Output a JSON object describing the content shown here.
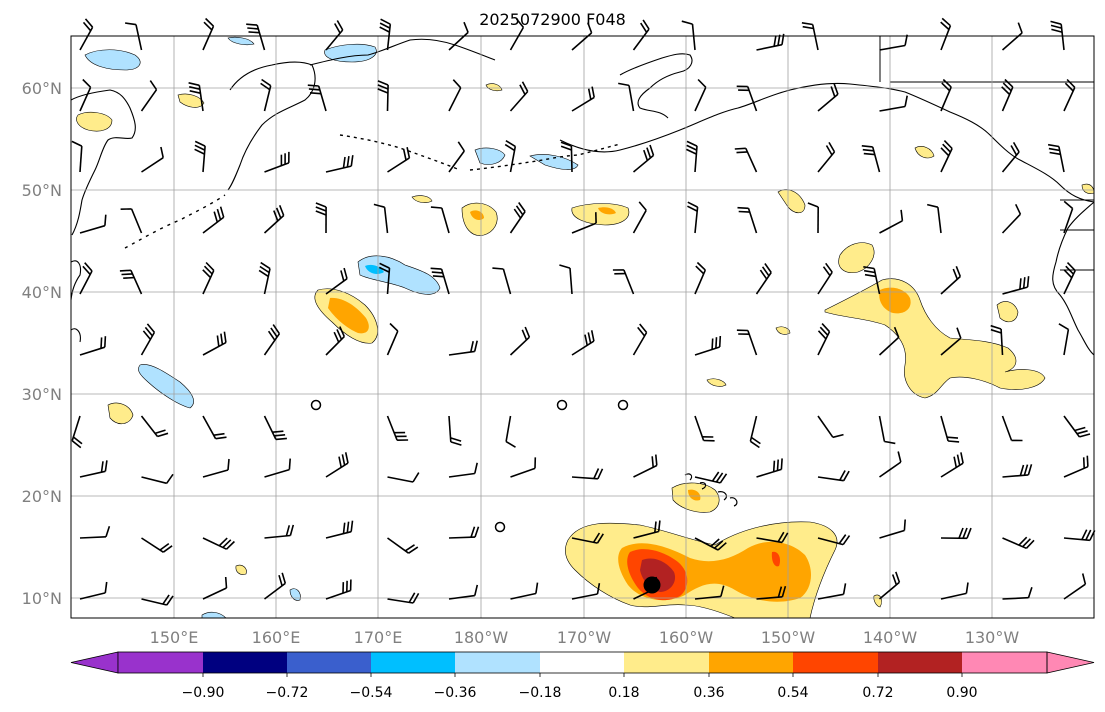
{
  "title": "2025072900 F048",
  "lat_labels": [
    "60°N",
    "50°N",
    "40°N",
    "30°N",
    "20°N",
    "10°N"
  ],
  "lon_labels": [
    "150°E",
    "160°E",
    "170°E",
    "180°W",
    "170°W",
    "160°W",
    "150°W",
    "140°W",
    "130°W"
  ],
  "colorbar": {
    "tick_labels": [
      "−0.90",
      "−0.72",
      "−0.54",
      "−0.36",
      "−0.18",
      "0.18",
      "0.36",
      "0.54",
      "0.72",
      "0.90"
    ],
    "colors": [
      "#9932cc",
      "#000080",
      "#3a5fcd",
      "#00bfff",
      "#b0e2ff",
      "#ffffff",
      "#ffec8b",
      "#ffa500",
      "#ff4500",
      "#b22222",
      "#ff88b4"
    ]
  },
  "map": {
    "background": "#ffffff",
    "grid_color": "#a0a0a0",
    "coast_color": "#000000"
  }
}
